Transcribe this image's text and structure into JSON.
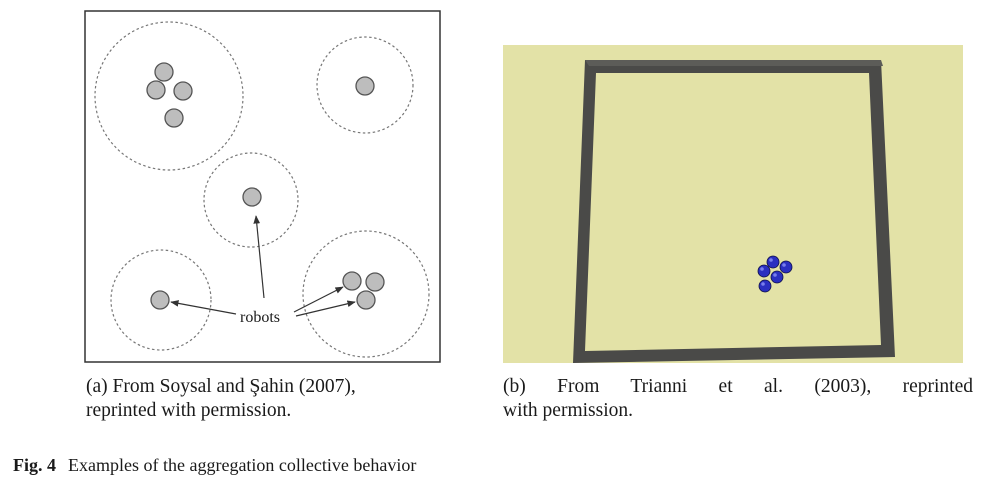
{
  "panel_a": {
    "annotation": "robots"
  },
  "panel_b": {
    "colors": {
      "floor": "#e3e2a7",
      "wall": "#4a4a48",
      "robot": "#2a2fc0"
    }
  },
  "captions": {
    "a_line1": "(a) From Soysal and Şahin (2007),",
    "a_line2": "reprinted with permission.",
    "b_line1": "(b) From Trianni et al. (2003), reprinted",
    "b_line2": "with permission."
  },
  "figure": {
    "label": "Fig. 4",
    "text": "Examples of the aggregation collective behavior"
  }
}
